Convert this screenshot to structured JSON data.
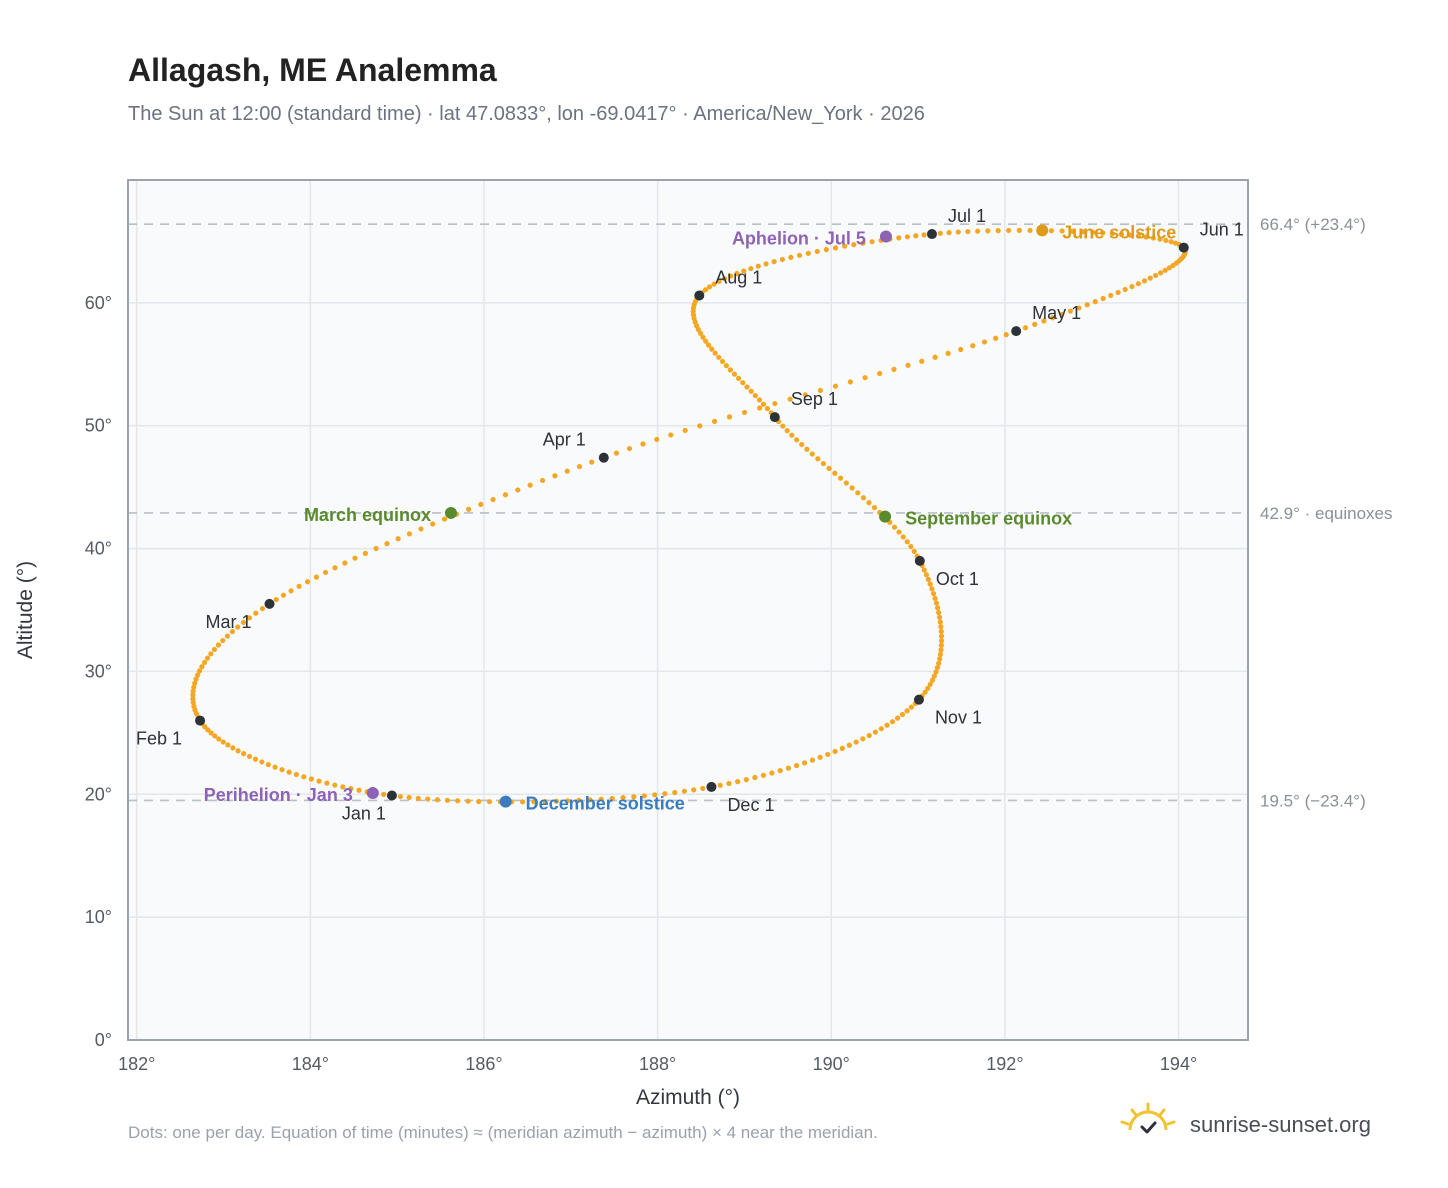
{
  "header": {
    "title": "Allagash, ME Analemma",
    "subtitle": "The Sun at 12:00 (standard time) · lat 47.0833°, lon -69.0417° · America/New_York · 2026"
  },
  "footer": {
    "note": "Dots: one per day. Equation of time (minutes) ≈ (meridian azimuth − azimuth) × 4 near the meridian.",
    "brand": "sunrise-sunset.org",
    "brand_icon": "sun-check-icon"
  },
  "colors": {
    "curve": "#f5a623",
    "month_marker": "#2d3138",
    "equinox": "#5a8a2e",
    "june_solstice": "#e09a1a",
    "december_solstice": "#3a7cc0",
    "apsis": "#8e63b5",
    "grid": "#e3e7ec",
    "plot_bg": "#f8fafc",
    "frame": "#9aa3ae"
  },
  "chart_data": {
    "type": "scatter",
    "xlabel": "Azimuth (°)",
    "ylabel": "Altitude (°)",
    "xlim": [
      181.9,
      194.8
    ],
    "ylim": [
      0,
      70
    ],
    "x_ticks": [
      182,
      184,
      186,
      188,
      190,
      192,
      194
    ],
    "x_tick_labels": [
      "182°",
      "184°",
      "186°",
      "188°",
      "190°",
      "192°",
      "194°"
    ],
    "y_ticks": [
      0,
      10,
      20,
      30,
      40,
      50,
      60
    ],
    "y_tick_labels": [
      "0°",
      "10°",
      "20°",
      "30°",
      "40°",
      "50°",
      "60°"
    ],
    "grid": true,
    "reference_lines": [
      {
        "y": 66.4,
        "label": "66.4° (+23.4°)"
      },
      {
        "y": 42.9,
        "label": "42.9° · equinoxes"
      },
      {
        "y": 19.5,
        "label": "19.5° (−23.4°)"
      }
    ],
    "daily_points": {
      "description_source": "one dot per day",
      "key_path": [
        {
          "date": "Jan 1",
          "az": 184.94,
          "alt": 19.9
        },
        {
          "date": "Feb 1",
          "az": 182.73,
          "alt": 26.0
        },
        {
          "date": "Mar 1",
          "az": 183.53,
          "alt": 35.5
        },
        {
          "date": "Apr 1",
          "az": 187.38,
          "alt": 47.4
        },
        {
          "date": "May 1",
          "az": 192.13,
          "alt": 57.7
        },
        {
          "date": "Jun 1",
          "az": 194.06,
          "alt": 64.5
        },
        {
          "date": "Jul 1",
          "az": 191.16,
          "alt": 65.6
        },
        {
          "date": "Aug 1",
          "az": 188.48,
          "alt": 60.6
        },
        {
          "date": "Sep 1",
          "az": 189.35,
          "alt": 50.7
        },
        {
          "date": "Oct 1",
          "az": 191.02,
          "alt": 39.0
        },
        {
          "date": "Nov 1",
          "az": 191.01,
          "alt": 27.7
        },
        {
          "date": "Dec 1",
          "az": 188.62,
          "alt": 20.6
        }
      ]
    },
    "month_markers": [
      {
        "label": "Jan 1",
        "az": 184.94,
        "alt": 19.9,
        "lx": -6,
        "ly": 24,
        "anchor": "end"
      },
      {
        "label": "Feb 1",
        "az": 182.73,
        "alt": 26.0,
        "lx": -18,
        "ly": 24,
        "anchor": "end"
      },
      {
        "label": "Mar 1",
        "az": 183.53,
        "alt": 35.5,
        "lx": -18,
        "ly": 24,
        "anchor": "end"
      },
      {
        "label": "Apr 1",
        "az": 187.38,
        "alt": 47.4,
        "lx": -18,
        "ly": -12,
        "anchor": "end"
      },
      {
        "label": "May 1",
        "az": 192.13,
        "alt": 57.7,
        "lx": 16,
        "ly": -12,
        "anchor": "start"
      },
      {
        "label": "Jun 1",
        "az": 194.06,
        "alt": 64.5,
        "lx": 16,
        "ly": -12,
        "anchor": "start"
      },
      {
        "label": "Jul 1",
        "az": 191.16,
        "alt": 65.6,
        "lx": 16,
        "ly": -12,
        "anchor": "start"
      },
      {
        "label": "Aug 1",
        "az": 188.48,
        "alt": 60.6,
        "lx": 16,
        "ly": -12,
        "anchor": "start"
      },
      {
        "label": "Sep 1",
        "az": 189.35,
        "alt": 50.7,
        "lx": 16,
        "ly": -12,
        "anchor": "start"
      },
      {
        "label": "Oct 1",
        "az": 191.02,
        "alt": 39.0,
        "lx": 16,
        "ly": 24,
        "anchor": "start"
      },
      {
        "label": "Nov 1",
        "az": 191.01,
        "alt": 27.7,
        "lx": 16,
        "ly": 24,
        "anchor": "start"
      },
      {
        "label": "Dec 1",
        "az": 188.62,
        "alt": 20.6,
        "lx": 16,
        "ly": 24,
        "anchor": "start"
      }
    ],
    "events": [
      {
        "label": "March equinox",
        "az": 185.62,
        "alt": 42.9,
        "color": "#5a8a2e",
        "lx": -20,
        "ly": 8,
        "anchor": "end"
      },
      {
        "label": "September equinox",
        "az": 190.62,
        "alt": 42.6,
        "color": "#5a8a2e",
        "lx": 20,
        "ly": 8,
        "anchor": "start"
      },
      {
        "label": "June solstice",
        "az": 192.43,
        "alt": 65.9,
        "color": "#e09a1a",
        "lx": 20,
        "ly": 8,
        "anchor": "start"
      },
      {
        "label": "December solstice",
        "az": 186.25,
        "alt": 19.4,
        "color": "#3a7cc0",
        "lx": 20,
        "ly": 8,
        "anchor": "start"
      },
      {
        "label": "Aphelion · Jul 5",
        "az": 190.63,
        "alt": 65.4,
        "color": "#8e63b5",
        "lx": -20,
        "ly": 8,
        "anchor": "end"
      },
      {
        "label": "Perihelion · Jan 3",
        "az": 184.72,
        "alt": 20.1,
        "color": "#8e63b5",
        "lx": -20,
        "ly": 8,
        "anchor": "end"
      }
    ]
  }
}
